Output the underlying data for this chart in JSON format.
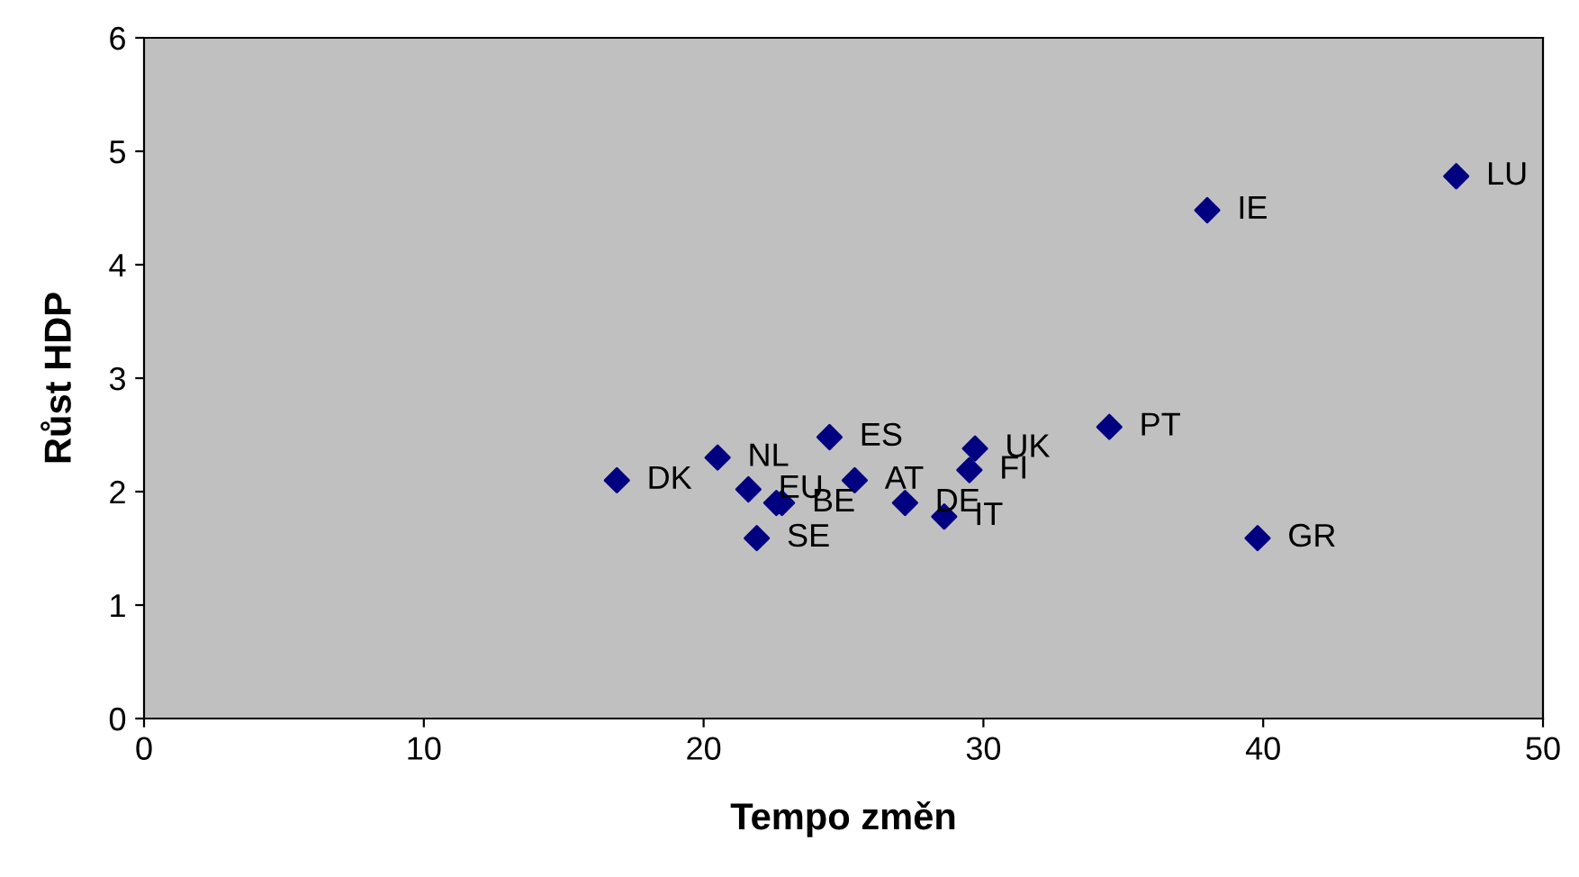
{
  "chart_data": {
    "type": "scatter",
    "xlabel": "Tempo změn",
    "ylabel": "Růst HDP",
    "x": [
      16.9,
      20.5,
      21.6,
      22.6,
      22.8,
      24.5,
      25.4,
      27.2,
      28.6,
      29.7,
      29.5,
      21.9,
      34.5,
      38.0,
      46.9,
      39.8
    ],
    "series": [
      {
        "color": "#000080",
        "values": [
          2.1,
          2.3,
          2.02,
          1.9,
          1.9,
          2.48,
          2.1,
          1.9,
          1.78,
          2.38,
          2.19,
          1.59,
          2.57,
          4.48,
          4.78,
          1.59
        ]
      }
    ],
    "annotations": [
      {
        "text": "DK",
        "x": 16.9,
        "y": 2.1
      },
      {
        "text": "NL",
        "x": 20.5,
        "y": 2.3
      },
      {
        "text": "EU",
        "x": 21.6,
        "y": 2.02
      },
      {
        "text": "BE",
        "x": 22.8,
        "y": 1.9
      },
      {
        "text": "ES",
        "x": 24.5,
        "y": 2.48
      },
      {
        "text": "AT",
        "x": 25.4,
        "y": 2.1
      },
      {
        "text": "DE",
        "x": 27.2,
        "y": 1.9
      },
      {
        "text": "IT",
        "x": 28.6,
        "y": 1.78
      },
      {
        "text": "UK",
        "x": 29.7,
        "y": 2.38
      },
      {
        "text": "FI",
        "x": 29.5,
        "y": 2.19
      },
      {
        "text": "SE",
        "x": 21.9,
        "y": 1.59
      },
      {
        "text": "PT",
        "x": 34.5,
        "y": 2.57
      },
      {
        "text": "IE",
        "x": 38.0,
        "y": 4.48
      },
      {
        "text": "LU",
        "x": 46.9,
        "y": 4.78
      },
      {
        "text": "GR",
        "x": 39.8,
        "y": 1.59
      }
    ],
    "xlim": [
      0,
      50
    ],
    "xticks": [
      0,
      10,
      20,
      30,
      40,
      50
    ],
    "ylim": [
      0,
      6
    ],
    "yticks": [
      0,
      1,
      2,
      3,
      4,
      5,
      6
    ],
    "grid": false,
    "legend": false,
    "marker": "diamond"
  }
}
